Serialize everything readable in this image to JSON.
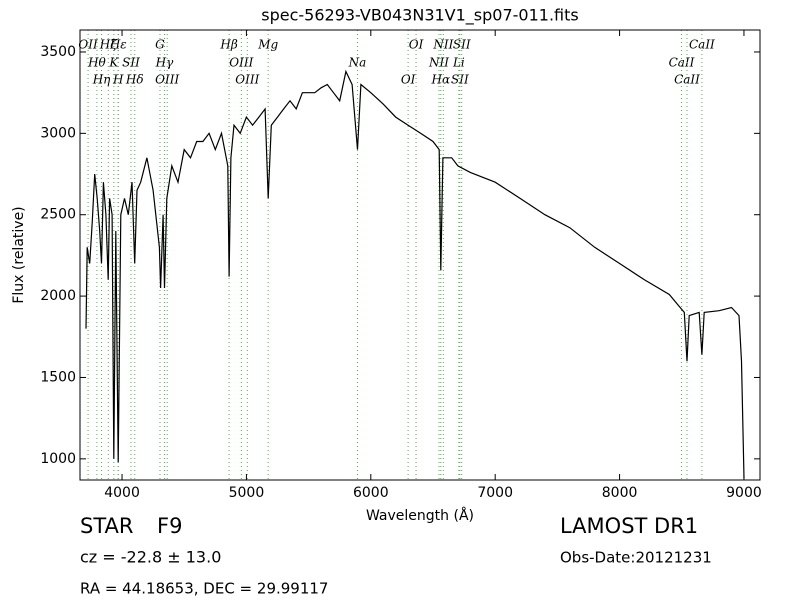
{
  "chart_data": {
    "type": "line",
    "title": "spec-56293-VB043N31V1_sp07-011.fits",
    "x_label": "Wavelength (Å)",
    "y_label": "Flux (relative)",
    "xlim": [
      3662,
      9129
    ],
    "ylim": [
      870,
      3635
    ],
    "xticks": [
      4000,
      5000,
      6000,
      7000,
      8000,
      9000
    ],
    "yticks": [
      1000,
      1500,
      2000,
      2500,
      3000,
      3500
    ],
    "color": "#000000",
    "line_color": "#55aa55",
    "x": [
      3710,
      3720,
      3740,
      3760,
      3780,
      3800,
      3820,
      3835,
      3850,
      3870,
      3889,
      3900,
      3920,
      3934,
      3950,
      3969,
      3990,
      4020,
      4050,
      4080,
      4102,
      4120,
      4150,
      4200,
      4250,
      4300,
      4310,
      4330,
      4341,
      4360,
      4400,
      4450,
      4500,
      4550,
      4600,
      4650,
      4700,
      4750,
      4800,
      4850,
      4861,
      4875,
      4900,
      4950,
      5000,
      5050,
      5100,
      5150,
      5175,
      5200,
      5250,
      5300,
      5350,
      5400,
      5450,
      5500,
      5550,
      5600,
      5650,
      5700,
      5750,
      5800,
      5850,
      5893,
      5920,
      6000,
      6100,
      6200,
      6300,
      6400,
      6500,
      6550,
      6563,
      6580,
      6650,
      6700,
      6800,
      7000,
      7200,
      7400,
      7600,
      7800,
      8000,
      8200,
      8400,
      8498,
      8520,
      8542,
      8560,
      8640,
      8662,
      8680,
      8800,
      8900,
      8960,
      8980,
      9000
    ],
    "values": [
      1800,
      2300,
      2200,
      2450,
      2750,
      2600,
      2400,
      2200,
      2700,
      2500,
      2100,
      2600,
      2500,
      1000,
      2400,
      980,
      2500,
      2600,
      2500,
      2700,
      2200,
      2650,
      2700,
      2850,
      2650,
      2300,
      2050,
      2500,
      2050,
      2600,
      2800,
      2700,
      2900,
      2850,
      2950,
      2950,
      3000,
      2900,
      3000,
      2800,
      2120,
      2850,
      3050,
      3000,
      3100,
      3050,
      3100,
      3150,
      2600,
      3050,
      3100,
      3150,
      3200,
      3150,
      3250,
      3250,
      3250,
      3280,
      3300,
      3250,
      3200,
      3380,
      3300,
      2900,
      3300,
      3250,
      3180,
      3100,
      3050,
      3000,
      2950,
      2900,
      2160,
      2850,
      2850,
      2800,
      2760,
      2700,
      2600,
      2500,
      2420,
      2300,
      2200,
      2100,
      2010,
      1920,
      1900,
      1600,
      1880,
      1900,
      1640,
      1900,
      1910,
      1930,
      1880,
      1600,
      880
    ],
    "spectral_lines": [
      {
        "label": "OII",
        "wavelength": 3727
      },
      {
        "label": "Hθ",
        "wavelength": 3798
      },
      {
        "label": "Hη",
        "wavelength": 3835
      },
      {
        "label": "Hζ",
        "wavelength": 3889
      },
      {
        "label": "K",
        "wavelength": 3934
      },
      {
        "label": "H",
        "wavelength": 3969
      },
      {
        "label": "Hε",
        "wavelength": 3970
      },
      {
        "label": "SII",
        "wavelength": 4072
      },
      {
        "label": "Hδ",
        "wavelength": 4102
      },
      {
        "label": "G",
        "wavelength": 4305
      },
      {
        "label": "Hγ",
        "wavelength": 4341
      },
      {
        "label": "OIII",
        "wavelength": 4363
      },
      {
        "label": "Hβ",
        "wavelength": 4861
      },
      {
        "label": "OIII",
        "wavelength": 4959
      },
      {
        "label": "OIII",
        "wavelength": 5007
      },
      {
        "label": "Mg",
        "wavelength": 5175
      },
      {
        "label": "Na",
        "wavelength": 5893
      },
      {
        "label": "OI",
        "wavelength": 6300
      },
      {
        "label": "OI",
        "wavelength": 6364
      },
      {
        "label": "NII",
        "wavelength": 6548
      },
      {
        "label": "Hα",
        "wavelength": 6563
      },
      {
        "label": "NII",
        "wavelength": 6583
      },
      {
        "label": "Li",
        "wavelength": 6708
      },
      {
        "label": "SII",
        "wavelength": 6716
      },
      {
        "label": "SII",
        "wavelength": 6731
      },
      {
        "label": "CaII",
        "wavelength": 8498
      },
      {
        "label": "CaII",
        "wavelength": 8542
      },
      {
        "label": "CaII",
        "wavelength": 8662
      }
    ]
  },
  "info": {
    "object_class": "STAR",
    "subclass": "F9",
    "cz": "cz = -22.8 ± 13.0",
    "coords": "RA = 44.18653, DEC = 29.99117",
    "survey": "LAMOST DR1",
    "obs_date": "Obs-Date:20121231"
  }
}
